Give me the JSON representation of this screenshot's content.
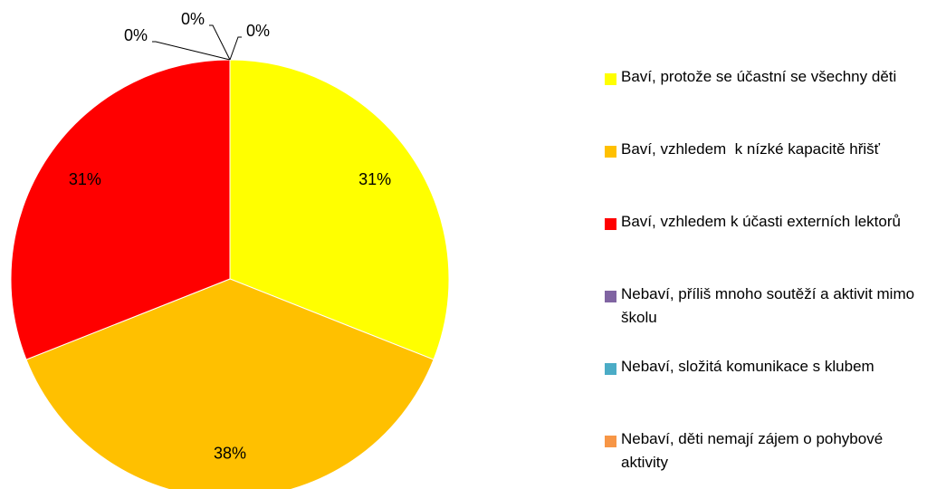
{
  "chart_data": {
    "type": "pie",
    "categories": [
      "Baví, protože se účastní se všechny děti",
      "Baví, vzhledem  k nízké kapacitě hřišť",
      "Baví, vzhledem k účasti externích lektorů",
      "Nebaví, příliš mnoho soutěží a aktivit mimo školu",
      "Nebaví, složitá komunikace s klubem",
      "Nebaví, děti nemají zájem o pohybové aktivity"
    ],
    "values": [
      31,
      38,
      31,
      0,
      0,
      0
    ],
    "value_labels": [
      "31%",
      "38%",
      "31%",
      "0%",
      "0%",
      "0%"
    ],
    "colors": [
      "#FFFF00",
      "#FFC000",
      "#FF0000",
      "#8064A2",
      "#4BACC6",
      "#F79646"
    ],
    "legend": "right"
  }
}
